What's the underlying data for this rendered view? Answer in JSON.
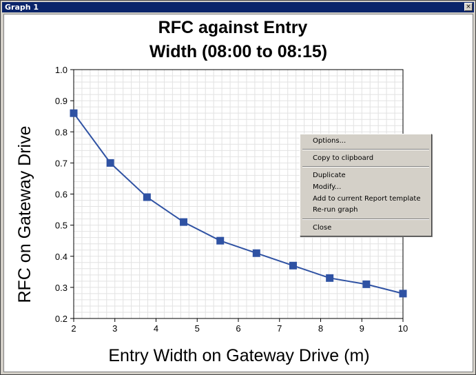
{
  "window": {
    "title": "Graph 1",
    "close_glyph": "×",
    "titlebar_color": "#0a246a"
  },
  "chart_data": {
    "type": "line",
    "title_line1": "RFC against Entry",
    "title_line2": "Width (08:00 to 08:15)",
    "xlabel": "Entry  Width on Gateway Drive (m)",
    "ylabel": "RFC on Gateway Drive",
    "x": [
      2.0,
      2.89,
      3.78,
      4.67,
      5.56,
      6.44,
      7.33,
      8.22,
      9.11,
      10.0
    ],
    "values": [
      0.86,
      0.7,
      0.59,
      0.51,
      0.45,
      0.41,
      0.37,
      0.33,
      0.31,
      0.28
    ],
    "xlim": [
      2,
      10
    ],
    "ylim": [
      0.2,
      1.0
    ],
    "xticks": [
      "2",
      "3",
      "4",
      "5",
      "6",
      "7",
      "8",
      "9",
      "10"
    ],
    "yticks": [
      "0.2",
      "0.3",
      "0.4",
      "0.5",
      "0.6",
      "0.7",
      "0.8",
      "0.9",
      "1.0"
    ],
    "grid": true,
    "marker": "square",
    "line_color": "#2f52a3",
    "marker_color": "#2f52a3",
    "grid_color": "#e2e2e2"
  },
  "context_menu": {
    "items": [
      {
        "label": "Options..."
      },
      {
        "label": "Copy to clipboard"
      },
      {
        "label": "Duplicate"
      },
      {
        "label": "Modify..."
      },
      {
        "label": "Add to current Report template"
      },
      {
        "label": "Re-run graph"
      },
      {
        "label": "Close"
      }
    ]
  }
}
